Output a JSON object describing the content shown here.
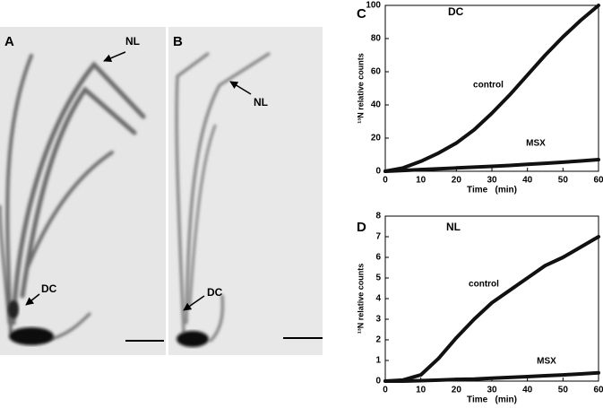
{
  "images": [
    {
      "panel": "A",
      "labels": [
        "NL",
        "DC"
      ]
    },
    {
      "panel": "B",
      "labels": [
        "NL",
        "DC"
      ]
    }
  ],
  "chart_data": [
    {
      "type": "line",
      "panel": "C",
      "title": "DC",
      "x_label": "Time   (min)",
      "y_label": "¹³N relative counts",
      "x": [
        0,
        5,
        10,
        15,
        20,
        25,
        30,
        35,
        40,
        45,
        50,
        55,
        60
      ],
      "series": [
        {
          "name": "control",
          "color": "#111111",
          "values": [
            0,
            2,
            6,
            11,
            17,
            25,
            35,
            46,
            58,
            70,
            81,
            91,
            100
          ]
        },
        {
          "name": "MSX",
          "color": "#111111",
          "values": [
            0,
            0.5,
            1,
            1.5,
            2,
            2.5,
            3,
            3.5,
            4.2,
            4.8,
            5.5,
            6.2,
            7
          ]
        }
      ],
      "xlim": [
        0,
        60
      ],
      "xticks": [
        0,
        10,
        20,
        30,
        40,
        50,
        60
      ],
      "ylim": [
        0,
        100
      ],
      "yticks": [
        0,
        20,
        40,
        60,
        80,
        100
      ]
    },
    {
      "type": "line",
      "panel": "D",
      "title": "NL",
      "x_label": "Time   (min)",
      "y_label": "¹³N relative counts",
      "x": [
        0,
        5,
        10,
        15,
        20,
        25,
        30,
        35,
        40,
        45,
        50,
        55,
        60
      ],
      "series": [
        {
          "name": "control",
          "color": "#111111",
          "values": [
            0,
            0.05,
            0.3,
            1.1,
            2.1,
            3.0,
            3.8,
            4.4,
            5.0,
            5.6,
            6.0,
            6.5,
            7.0
          ]
        },
        {
          "name": "MSX",
          "color": "#111111",
          "values": [
            0,
            0,
            0.02,
            0.05,
            0.08,
            0.1,
            0.14,
            0.18,
            0.22,
            0.26,
            0.3,
            0.35,
            0.4
          ]
        }
      ],
      "xlim": [
        0,
        60
      ],
      "xticks": [
        0,
        10,
        20,
        30,
        40,
        50,
        60
      ],
      "ylim": [
        0,
        8
      ],
      "yticks": [
        0,
        1,
        2,
        3,
        4,
        5,
        6,
        7,
        8
      ]
    }
  ]
}
